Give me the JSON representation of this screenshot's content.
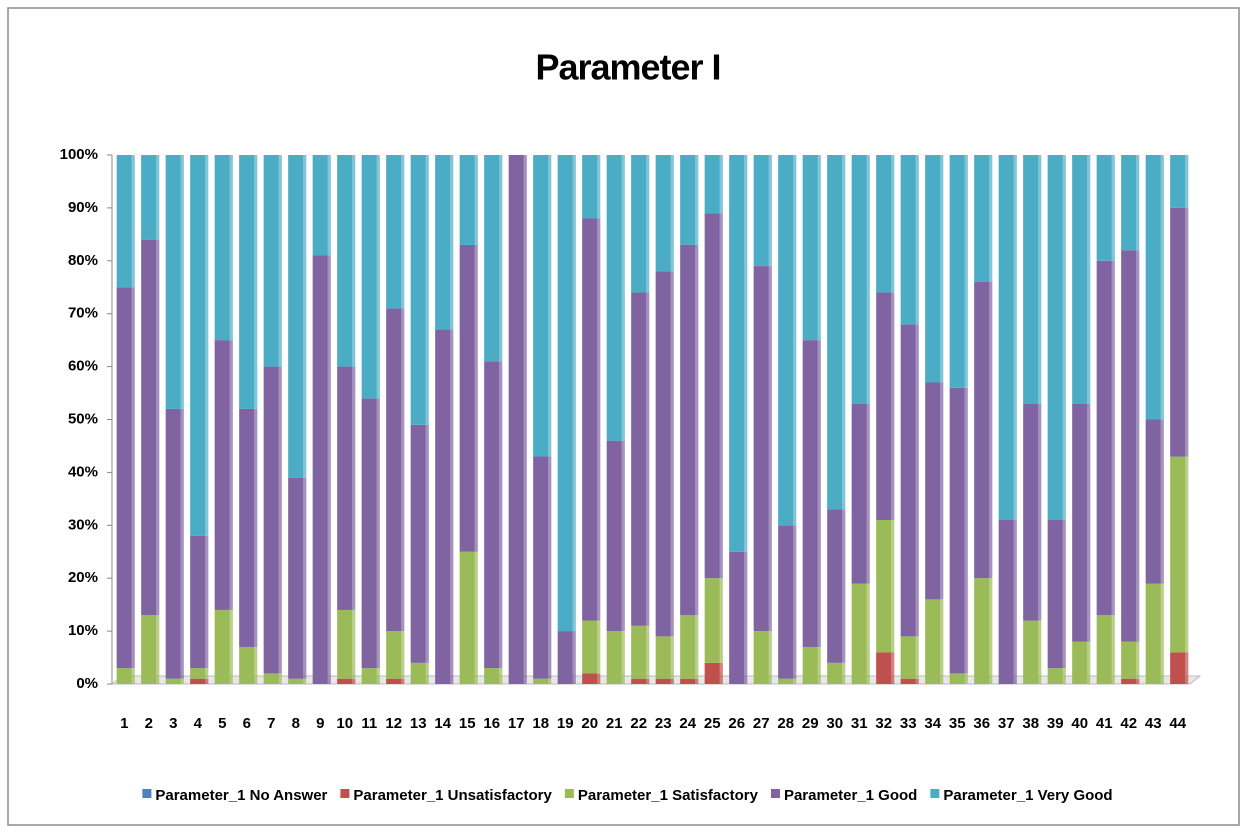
{
  "chart_data": {
    "type": "stacked_bar_100",
    "title": "Parameter I",
    "categories": [
      "1",
      "2",
      "3",
      "4",
      "5",
      "6",
      "7",
      "8",
      "9",
      "10",
      "11",
      "12",
      "13",
      "14",
      "15",
      "16",
      "17",
      "18",
      "19",
      "20",
      "21",
      "22",
      "23",
      "24",
      "25",
      "26",
      "27",
      "28",
      "29",
      "30",
      "31",
      "32",
      "33",
      "34",
      "35",
      "36",
      "37",
      "38",
      "39",
      "40",
      "41",
      "42",
      "43",
      "44"
    ],
    "series": [
      {
        "name": "Parameter_1 No Answer",
        "color": "#4f81bd",
        "values": [
          0,
          0,
          0,
          0,
          0,
          0,
          0,
          0,
          0,
          0,
          0,
          0,
          0,
          0,
          0,
          0,
          0,
          0,
          0,
          0,
          0,
          0,
          0,
          0,
          0,
          0,
          0,
          0,
          0,
          0,
          0,
          0,
          0,
          0,
          0,
          0,
          0,
          0,
          0,
          0,
          0,
          0,
          0,
          0
        ]
      },
      {
        "name": "Parameter_1 Unsatisfactory",
        "color": "#c0504d",
        "values": [
          0,
          0,
          0,
          1,
          0,
          0,
          0,
          0,
          0,
          1,
          0,
          1,
          0,
          0,
          0,
          0,
          0,
          0,
          0,
          2,
          0,
          1,
          1,
          1,
          4,
          0,
          0,
          0,
          0,
          0,
          0,
          6,
          1,
          0,
          0,
          0,
          0,
          0,
          0,
          0,
          0,
          1,
          0,
          6
        ]
      },
      {
        "name": "Parameter_1 Satisfactory",
        "color": "#9bbb59",
        "values": [
          3,
          13,
          1,
          2,
          14,
          7,
          2,
          1,
          0,
          13,
          3,
          9,
          4,
          0,
          25,
          3,
          0,
          1,
          0,
          10,
          10,
          10,
          8,
          12,
          16,
          0,
          10,
          1,
          7,
          4,
          19,
          25,
          8,
          16,
          2,
          20,
          0,
          12,
          3,
          8,
          13,
          7,
          19,
          37
        ]
      },
      {
        "name": "Parameter_1 Good",
        "color": "#8064a2",
        "values": [
          72,
          71,
          51,
          25,
          51,
          45,
          58,
          38,
          81,
          46,
          51,
          61,
          45,
          67,
          58,
          58,
          100,
          42,
          10,
          76,
          36,
          63,
          69,
          70,
          69,
          25,
          69,
          29,
          58,
          29,
          34,
          43,
          59,
          41,
          54,
          56,
          31,
          41,
          28,
          45,
          67,
          74,
          31,
          47
        ]
      },
      {
        "name": "Parameter_1 Very Good",
        "color": "#4bacc6",
        "values": [
          25,
          16,
          48,
          72,
          35,
          48,
          40,
          61,
          19,
          40,
          46,
          29,
          51,
          33,
          17,
          39,
          0,
          57,
          90,
          12,
          54,
          26,
          22,
          17,
          11,
          75,
          21,
          70,
          35,
          67,
          47,
          26,
          32,
          43,
          44,
          24,
          69,
          47,
          69,
          47,
          20,
          18,
          50,
          10
        ]
      }
    ],
    "ylim": [
      0,
      100
    ],
    "yticks": [
      {
        "value": 0,
        "label": "0%"
      },
      {
        "value": 10,
        "label": "10%"
      },
      {
        "value": 20,
        "label": "20%"
      },
      {
        "value": 30,
        "label": "30%"
      },
      {
        "value": 40,
        "label": "40%"
      },
      {
        "value": 50,
        "label": "50%"
      },
      {
        "value": 60,
        "label": "60%"
      },
      {
        "value": 70,
        "label": "70%"
      },
      {
        "value": 80,
        "label": "80%"
      },
      {
        "value": 90,
        "label": "90%"
      },
      {
        "value": 100,
        "label": "100%"
      }
    ],
    "legend": "bottom"
  }
}
